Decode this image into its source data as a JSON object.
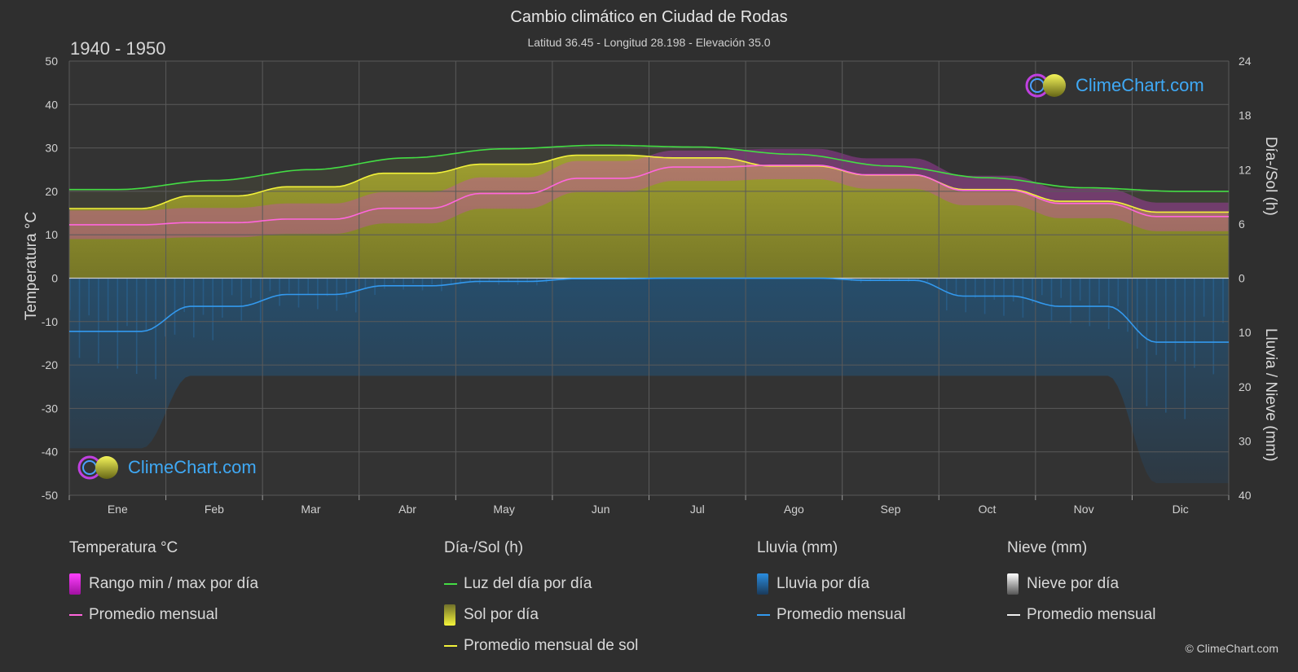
{
  "header": {
    "title": "Cambio climático en Ciudad de Rodas",
    "subtitle": "Latitud 36.45 - Longitud 28.198 - Elevación 35.0",
    "period": "1940 - 1950"
  },
  "logo": {
    "text": "ClimeChart.com"
  },
  "copyright": "© ClimeChart.com",
  "chart_data": {
    "type": "area",
    "x": [
      "Ene",
      "Feb",
      "Mar",
      "Abr",
      "May",
      "Jun",
      "Jul",
      "Ago",
      "Sep",
      "Oct",
      "Nov",
      "Dic"
    ],
    "y_left": {
      "label": "Temperatura °C",
      "range": [
        -50,
        50
      ],
      "ticks": [
        50,
        40,
        30,
        20,
        10,
        0,
        -10,
        -20,
        -30,
        -40,
        -50
      ]
    },
    "y_right_top": {
      "label": "Día-/Sol (h)",
      "range": [
        0,
        24
      ],
      "ticks": [
        24,
        18,
        12,
        6,
        0
      ]
    },
    "y_right_bottom": {
      "label": "Lluvia / Nieve (mm)",
      "range": [
        0,
        40
      ],
      "ticks": [
        0,
        10,
        20,
        30,
        40
      ]
    },
    "grid": true,
    "series": [
      {
        "name": "Luz del día por día",
        "unit": "h",
        "color": "#44dd44",
        "values": [
          9.8,
          10.8,
          12.0,
          13.3,
          14.3,
          14.7,
          14.5,
          13.7,
          12.4,
          11.1,
          10.0,
          9.6
        ]
      },
      {
        "name": "Promedio mensual de sol",
        "unit": "h",
        "color": "#f2f23a",
        "values": [
          7.7,
          9.1,
          10.1,
          11.6,
          12.6,
          13.6,
          13.3,
          12.4,
          11.4,
          9.8,
          8.5,
          7.3
        ]
      },
      {
        "name": "Promedio mensual",
        "group": "Temperatura °C",
        "unit": "°C",
        "color": "#ff66dd",
        "values": [
          12.3,
          12.8,
          13.6,
          16.1,
          19.5,
          23.0,
          25.6,
          26.0,
          23.8,
          20.2,
          17.2,
          14.2
        ]
      },
      {
        "name": "Promedio mensual",
        "group": "Lluvia (mm)",
        "unit": "mm",
        "color": "#3399ee",
        "values": [
          9.8,
          5.2,
          3.0,
          1.4,
          0.6,
          0.1,
          0.0,
          0.0,
          0.4,
          3.3,
          5.2,
          11.8
        ]
      }
    ],
    "temp_range": {
      "name": "Rango min / max por día",
      "min": [
        9.0,
        9.4,
        10.2,
        12.6,
        16.0,
        19.8,
        22.4,
        22.8,
        20.6,
        16.8,
        13.8,
        10.8
      ],
      "max": [
        15.6,
        16.2,
        17.2,
        19.8,
        23.2,
        27.0,
        29.4,
        29.8,
        27.6,
        23.6,
        20.6,
        17.4
      ]
    }
  },
  "legend": {
    "groups": [
      {
        "header": "Temperatura °C",
        "items": [
          {
            "label": "Rango min / max por día",
            "kind": "box",
            "color": "#e020e0"
          },
          {
            "label": "Promedio mensual",
            "kind": "line",
            "color": "#ff66dd"
          }
        ]
      },
      {
        "header": "Día-/Sol (h)",
        "items": [
          {
            "label": "Luz del día por día",
            "kind": "line",
            "color": "#44dd44"
          },
          {
            "label": "Sol por día",
            "kind": "box",
            "color": "#e6e62a"
          },
          {
            "label": "Promedio mensual de sol",
            "kind": "line",
            "color": "#f2f23a"
          }
        ]
      },
      {
        "header": "Lluvia (mm)",
        "items": [
          {
            "label": "Lluvia por día",
            "kind": "box",
            "color": "#2a8de0"
          },
          {
            "label": "Promedio mensual",
            "kind": "line",
            "color": "#3399ee"
          }
        ]
      },
      {
        "header": "Nieve (mm)",
        "items": [
          {
            "label": "Nieve por día",
            "kind": "box",
            "color": "#dddddd"
          },
          {
            "label": "Promedio mensual",
            "kind": "line",
            "color": "#eeeeee"
          }
        ]
      }
    ]
  }
}
